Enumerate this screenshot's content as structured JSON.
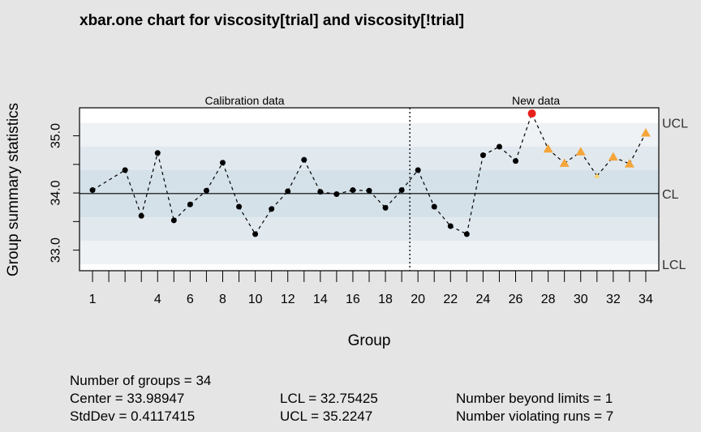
{
  "chart_data": {
    "type": "line",
    "title": "xbar.one chart for viscosity[trial] and viscosity[!trial]",
    "xlabel": "Group",
    "ylabel": "Group summary statistics",
    "sections": {
      "calibration_label": "Calibration data",
      "new_label": "New data",
      "boundary_after_group": 20
    },
    "x_ticks": [
      1,
      4,
      6,
      8,
      10,
      12,
      14,
      16,
      18,
      20,
      22,
      24,
      26,
      28,
      30,
      32,
      34
    ],
    "x_minor_ticks": [
      1,
      2,
      3,
      4,
      5,
      6,
      7,
      8,
      9,
      10,
      11,
      12,
      13,
      14,
      15,
      16,
      17,
      18,
      19,
      20,
      21,
      22,
      23,
      24,
      25,
      26,
      27,
      28,
      29,
      30,
      31,
      32,
      33,
      34,
      35
    ],
    "y_ticks": [
      33.0,
      34.0,
      35.0
    ],
    "ylim": [
      32.64,
      35.49
    ],
    "xlim": [
      0.2,
      35.8
    ],
    "limits": {
      "UCL": 35.2247,
      "CL": 33.98947,
      "LCL": 32.75425
    },
    "limit_labels": {
      "UCL": "UCL",
      "CL": "CL",
      "LCL": "LCL"
    },
    "points": [
      {
        "x": 1,
        "y": 34.05,
        "status": "ok"
      },
      {
        "x": 2,
        "y": 34.4,
        "status": "ok"
      },
      {
        "x": 3,
        "y": 33.6,
        "status": "ok"
      },
      {
        "x": 4,
        "y": 34.7,
        "status": "ok"
      },
      {
        "x": 5,
        "y": 33.52,
        "status": "ok"
      },
      {
        "x": 6,
        "y": 33.8,
        "status": "ok"
      },
      {
        "x": 7,
        "y": 34.04,
        "status": "ok"
      },
      {
        "x": 8,
        "y": 34.53,
        "status": "ok"
      },
      {
        "x": 9,
        "y": 33.76,
        "status": "ok"
      },
      {
        "x": 10,
        "y": 33.28,
        "status": "ok"
      },
      {
        "x": 11,
        "y": 33.72,
        "status": "ok"
      },
      {
        "x": 12,
        "y": 34.03,
        "status": "ok"
      },
      {
        "x": 13,
        "y": 34.58,
        "status": "ok"
      },
      {
        "x": 14,
        "y": 34.02,
        "status": "ok"
      },
      {
        "x": 15,
        "y": 33.98,
        "status": "ok"
      },
      {
        "x": 16,
        "y": 34.05,
        "status": "ok"
      },
      {
        "x": 17,
        "y": 34.04,
        "status": "ok"
      },
      {
        "x": 18,
        "y": 33.74,
        "status": "ok"
      },
      {
        "x": 19,
        "y": 34.05,
        "status": "ok"
      },
      {
        "x": 20,
        "y": 34.4,
        "status": "ok"
      },
      {
        "x": 21,
        "y": 33.76,
        "status": "ok"
      },
      {
        "x": 22,
        "y": 33.42,
        "status": "ok"
      },
      {
        "x": 23,
        "y": 33.28,
        "status": "ok"
      },
      {
        "x": 24,
        "y": 34.66,
        "status": "ok"
      },
      {
        "x": 25,
        "y": 34.81,
        "status": "ok"
      },
      {
        "x": 26,
        "y": 34.56,
        "status": "ok"
      },
      {
        "x": 27,
        "y": 35.39,
        "status": "beyond"
      },
      {
        "x": 28,
        "y": 34.77,
        "status": "violating"
      },
      {
        "x": 29,
        "y": 34.52,
        "status": "violating"
      },
      {
        "x": 30,
        "y": 34.72,
        "status": "violating"
      },
      {
        "x": 31,
        "y": 34.3,
        "status": "violating-small"
      },
      {
        "x": 32,
        "y": 34.63,
        "status": "violating"
      },
      {
        "x": 33,
        "y": 34.51,
        "status": "violating"
      },
      {
        "x": 34,
        "y": 35.05,
        "status": "violating"
      }
    ],
    "colors": {
      "plot_bg_outer": "#ffffff",
      "band_3": "#eef2f5",
      "band_2": "#e1e9ef",
      "band_1": "#d4e1e9",
      "point": "#000000",
      "beyond": "#e8211d",
      "violating": "#f5a53b",
      "violating_small": "#f7d26a"
    }
  },
  "stats": {
    "n_groups": "Number of groups = 34",
    "center": "Center = 33.98947",
    "stddev": "StdDev = 0.4117415",
    "lcl": "LCL = 32.75425",
    "ucl": "UCL = 35.2247",
    "beyond": "Number beyond limits = 1",
    "violating": "Number violating runs = 7"
  }
}
